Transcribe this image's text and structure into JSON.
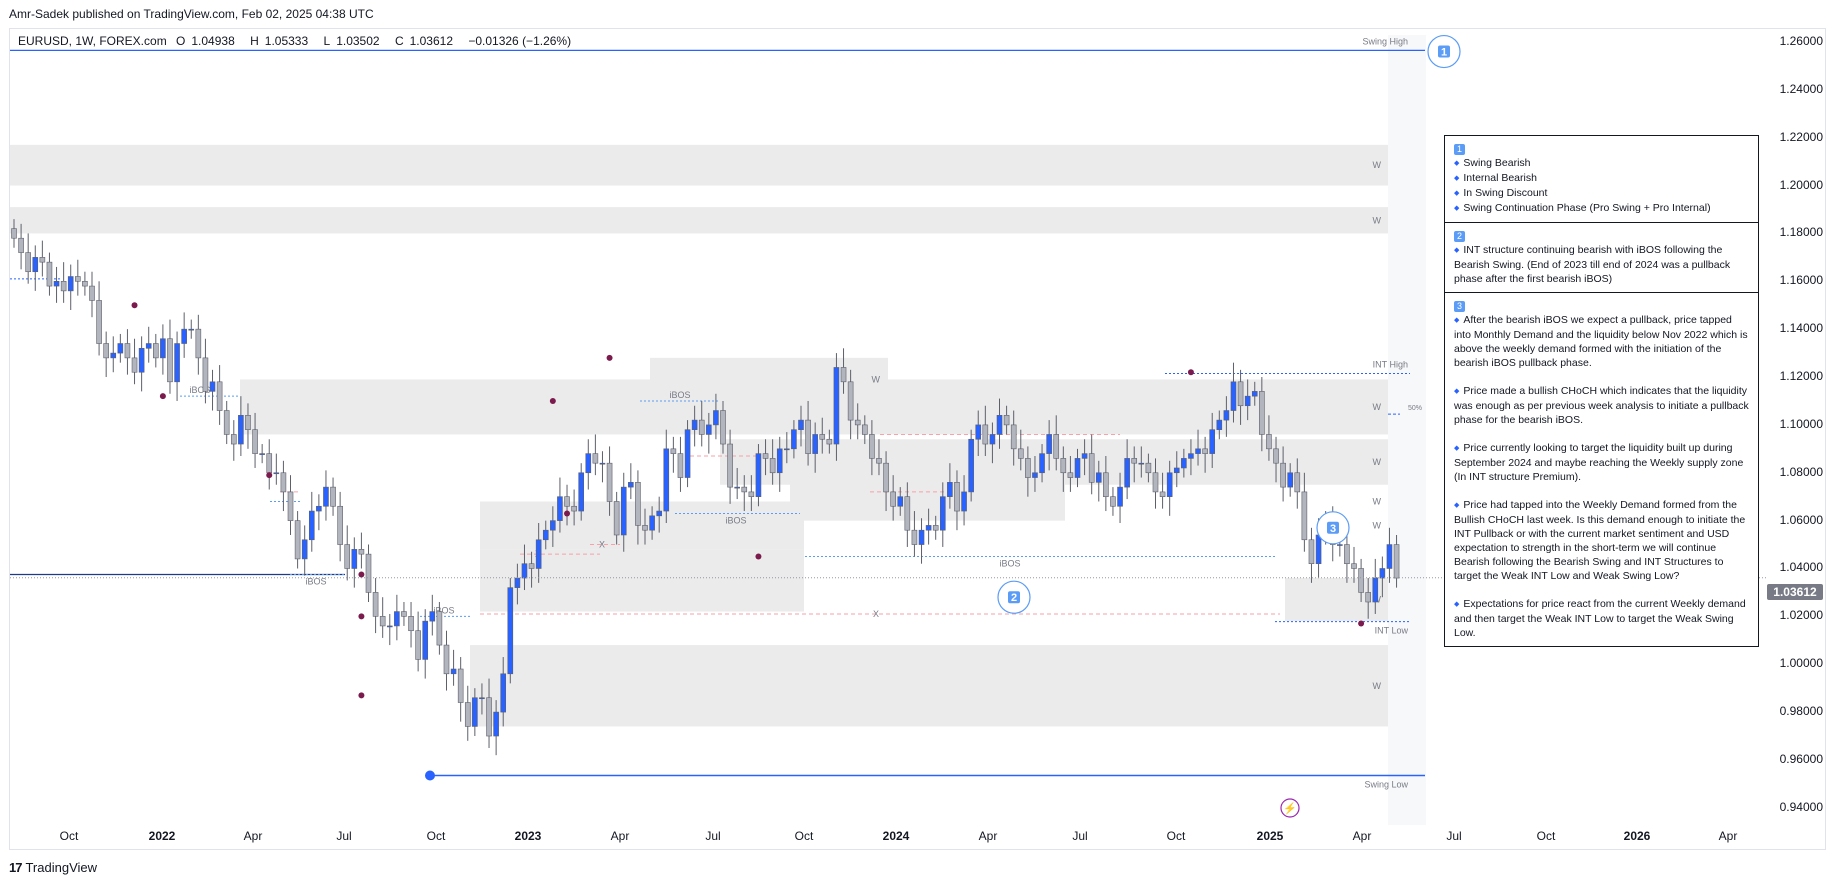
{
  "publisher": "Amr-Sadek published on TradingView.com, Feb 02, 2025 04:38 UTC",
  "legend": {
    "symbol": "EURUSD, 1W, FOREX.com",
    "open_label": "O",
    "open": "1.04938",
    "high_label": "H",
    "high": "1.05333",
    "low_label": "L",
    "low": "1.03502",
    "close_label": "C",
    "close": "1.03612",
    "change": "−0.01326 (−1.26%)"
  },
  "current_price": "1.03612",
  "footer": {
    "logo": "17",
    "brand": "TradingView"
  },
  "chart_data": {
    "type": "candlestick",
    "y_axis": {
      "ticks": [
        "1.26000",
        "1.24000",
        "1.22000",
        "1.20000",
        "1.18000",
        "1.16000",
        "1.14000",
        "1.12000",
        "1.10000",
        "1.08000",
        "1.06000",
        "1.04000",
        "1.02000",
        "1.00000",
        "0.98000",
        "0.96000",
        "0.94000"
      ],
      "range": [
        0.937,
        1.265
      ]
    },
    "x_axis": {
      "ticks": [
        {
          "label": "Oct",
          "bold": false
        },
        {
          "label": "2022",
          "bold": true
        },
        {
          "label": "Apr",
          "bold": false
        },
        {
          "label": "Jul",
          "bold": false
        },
        {
          "label": "Oct",
          "bold": false
        },
        {
          "label": "2023",
          "bold": true
        },
        {
          "label": "Apr",
          "bold": false
        },
        {
          "label": "Jul",
          "bold": false
        },
        {
          "label": "Oct",
          "bold": false
        },
        {
          "label": "2024",
          "bold": true
        },
        {
          "label": "Apr",
          "bold": false
        },
        {
          "label": "Jul",
          "bold": false
        },
        {
          "label": "Oct",
          "bold": false
        },
        {
          "label": "2025",
          "bold": true
        },
        {
          "label": "Apr",
          "bold": false
        },
        {
          "label": "Jul",
          "bold": false
        },
        {
          "label": "Oct",
          "bold": false
        },
        {
          "label": "2026",
          "bold": true
        },
        {
          "label": "Apr",
          "bold": false
        }
      ]
    },
    "closes": [
      1.178,
      1.172,
      1.164,
      1.17,
      1.168,
      1.158,
      1.16,
      1.156,
      1.162,
      1.16,
      1.158,
      1.152,
      1.134,
      1.128,
      1.13,
      1.134,
      1.128,
      1.122,
      1.132,
      1.134,
      1.128,
      1.136,
      1.118,
      1.134,
      1.14,
      1.14,
      1.128,
      1.114,
      1.118,
      1.106,
      1.096,
      1.092,
      1.104,
      1.098,
      1.088,
      1.088,
      1.08,
      1.08,
      1.072,
      1.06,
      1.044,
      1.052,
      1.064,
      1.066,
      1.074,
      1.066,
      1.05,
      1.04,
      1.048,
      1.046,
      1.03,
      1.02,
      1.016,
      1.016,
      1.022,
      1.02,
      1.014,
      1.002,
      1.018,
      1.022,
      1.008,
      0.996,
      0.998,
      0.984,
      0.974,
      0.986,
      0.986,
      0.97,
      0.98,
      0.996,
      1.032,
      1.036,
      1.042,
      1.04,
      1.052,
      1.056,
      1.06,
      1.07,
      1.066,
      1.064,
      1.08,
      1.088,
      1.084,
      1.084,
      1.068,
      1.054,
      1.074,
      1.076,
      1.058,
      1.056,
      1.062,
      1.064,
      1.09,
      1.088,
      1.078,
      1.098,
      1.102,
      1.096,
      1.1,
      1.106,
      1.092,
      1.074,
      1.074,
      1.072,
      1.07,
      1.088,
      1.086,
      1.08,
      1.09,
      1.09,
      1.098,
      1.102,
      1.088,
      1.096,
      1.094,
      1.092,
      1.124,
      1.118,
      1.102,
      1.1,
      1.096,
      1.086,
      1.084,
      1.072,
      1.066,
      1.07,
      1.056,
      1.05,
      1.056,
      1.058,
      1.056,
      1.07,
      1.076,
      1.064,
      1.072,
      1.094,
      1.1,
      1.092,
      1.096,
      1.104,
      1.1,
      1.09,
      1.086,
      1.078,
      1.08,
      1.088,
      1.096,
      1.086,
      1.08,
      1.078,
      1.086,
      1.088,
      1.076,
      1.08,
      1.07,
      1.066,
      1.074,
      1.086,
      1.084,
      1.084,
      1.08,
      1.072,
      1.07,
      1.08,
      1.082,
      1.086,
      1.088,
      1.09,
      1.088,
      1.098,
      1.102,
      1.106,
      1.118,
      1.108,
      1.112,
      1.114,
      1.096,
      1.09,
      1.084,
      1.074,
      1.08,
      1.072,
      1.052,
      1.042,
      1.054,
      1.06,
      1.05,
      1.05,
      1.042,
      1.04,
      1.03,
      1.026,
      1.036,
      1.04,
      1.05,
      1.036
    ],
    "zones": [
      {
        "label": "w",
        "low": 1.2,
        "high": 1.217
      },
      {
        "label": "w",
        "low": 1.18,
        "high": 1.191
      },
      {
        "label": "w",
        "low": 1.096,
        "high": 1.119
      },
      {
        "label": "w",
        "low": 1.11,
        "high": 1.128
      },
      {
        "label": "w",
        "low": 1.1,
        "high": 1.115
      },
      {
        "label": "w",
        "low": 1.075,
        "high": 1.094
      },
      {
        "label": "w",
        "low": 1.06,
        "high": 1.076
      },
      {
        "label": "w",
        "low": 1.048,
        "high": 1.068
      },
      {
        "label": "w",
        "low": 1.022,
        "high": 1.048
      },
      {
        "label": "w",
        "low": 1.018,
        "high": 1.036
      },
      {
        "label": "w",
        "low": 0.974,
        "high": 1.008
      }
    ],
    "levels": [
      {
        "label": "Swing High",
        "value": 1.2565
      },
      {
        "label": "Swing Low",
        "value": 0.9535
      },
      {
        "label": "INT High",
        "value": 1.1215
      },
      {
        "label": "INT Low",
        "value": 1.0178
      },
      {
        "label": "50%",
        "value": 1.1045
      }
    ],
    "annotations": [
      "iBOS",
      "iBOS",
      "iBOS",
      "iBOS",
      "iBOS",
      "iBOS",
      "iBOS",
      "X",
      "X",
      "X",
      "X"
    ],
    "labels": {
      "swing_high": "Swing High",
      "swing_low": "Swing Low",
      "int_high": "INT High",
      "int_low": "INT Low",
      "fifty": "50%",
      "ibos": "iBOS",
      "x": "X",
      "w": "w",
      "w_cap": "W"
    },
    "markers": [
      "1",
      "2",
      "3"
    ]
  },
  "notes": [
    {
      "num": "1",
      "bullets": [
        "Swing Bearish",
        "Internal Bearish",
        "In Swing Discount",
        "Swing Continuation Phase (Pro Swing + Pro Internal)"
      ]
    },
    {
      "num": "2",
      "bullets": [
        "INT structure continuing bearish with iBOS following the Bearish Swing. (End of 2023 till end of 2024 was a pullback phase after the first bearish iBOS)"
      ]
    },
    {
      "num": "3",
      "bullets": [
        "After the bearish iBOS we expect a pullback, price tapped into Monthly Demand and the liquidity below Nov 2022 which is above the weekly demand formed with the initiation of the bearish iBOS pullback phase.",
        "Price made a bullish CHoCH which indicates that the liquidity was enough as per previous week analysis to initiate a pullback phase for the bearish iBOS.",
        "Price currently looking to target the liquidity built up during September 2024 and maybe reaching the Weekly supply zone (In INT structure Premium).",
        "Price had tapped into the Weekly Demand formed from the Bullish CHoCH last week. Is this demand enough to initiate the INT Pullback or with the current market sentiment and USD expectation to strength in the short-term we will continue Bearish following the Bearish Swing and INT Structures to target the Weak INT Low and Weak Swing Low?",
        "Expectations for price react from the current Weekly demand and then target the Weak INT Low to target the Weak Swing Low."
      ]
    }
  ],
  "colors": {
    "bull": "#2962ff",
    "bear": "#b2b5be",
    "zone": "#ebebeb",
    "level": "#2962ff",
    "ibos": "#5b9cf6",
    "marker": "#7b1a4d",
    "x_line": "#f7a1a8"
  }
}
